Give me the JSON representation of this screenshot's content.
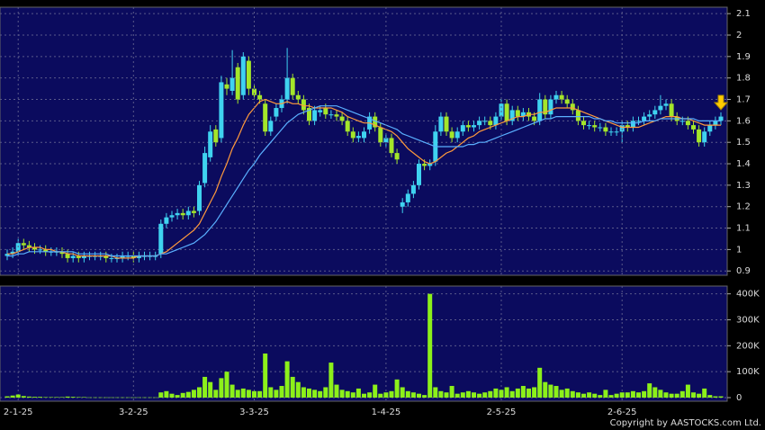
{
  "chart_data": [
    {
      "type": "candlestick",
      "open": [
        0.97,
        0.98,
        0.99,
        1.03,
        1.02,
        1.01,
        1.0,
        1.0,
        0.99,
        0.99,
        0.99,
        0.98,
        0.96,
        0.97,
        0.96,
        0.97,
        0.97,
        0.97,
        0.97,
        0.96,
        0.96,
        0.96,
        0.97,
        0.97,
        0.96,
        0.97,
        0.97,
        0.97,
        0.98,
        1.12,
        1.15,
        1.16,
        1.17,
        1.16,
        1.18,
        1.18,
        1.31,
        1.43,
        1.56,
        1.52,
        1.77,
        1.74,
        1.85,
        1.72,
        1.88,
        1.75,
        1.72,
        1.68,
        1.55,
        1.62,
        1.66,
        1.7,
        1.8,
        1.72,
        1.7,
        1.66,
        1.6,
        1.64,
        1.66,
        1.63,
        1.63,
        1.62,
        1.6,
        1.55,
        1.52,
        1.52,
        1.56,
        1.62,
        1.57,
        1.5,
        1.52,
        1.45,
        1.2,
        1.22,
        1.26,
        1.3,
        1.4,
        1.39,
        1.41,
        1.55,
        1.62,
        1.55,
        1.52,
        1.55,
        1.58,
        1.57,
        1.58,
        1.6,
        1.6,
        1.58,
        1.62,
        1.68,
        1.6,
        1.65,
        1.62,
        1.64,
        1.62,
        1.6,
        1.7,
        1.63,
        1.7,
        1.72,
        1.7,
        1.68,
        1.65,
        1.6,
        1.58,
        1.58,
        1.57,
        1.57,
        1.55,
        1.55,
        1.55,
        1.58,
        1.57,
        1.6,
        1.6,
        1.62,
        1.63,
        1.65,
        1.67,
        1.68,
        1.62,
        1.6,
        1.6,
        1.58,
        1.56,
        1.5,
        1.55,
        1.58,
        1.6
      ],
      "high": [
        1.0,
        1.01,
        1.05,
        1.05,
        1.04,
        1.03,
        1.02,
        1.02,
        1.01,
        1.01,
        1.01,
        1.0,
        0.99,
        0.99,
        0.99,
        0.99,
        0.99,
        0.99,
        0.99,
        0.98,
        0.98,
        0.99,
        0.99,
        0.99,
        0.99,
        0.99,
        0.99,
        0.99,
        1.14,
        1.17,
        1.18,
        1.19,
        1.19,
        1.2,
        1.2,
        1.32,
        1.48,
        1.58,
        1.58,
        1.81,
        1.8,
        1.93,
        1.87,
        1.92,
        1.9,
        1.77,
        1.74,
        1.7,
        1.62,
        1.68,
        1.72,
        1.94,
        1.82,
        1.74,
        1.72,
        1.68,
        1.67,
        1.67,
        1.68,
        1.65,
        1.65,
        1.64,
        1.62,
        1.57,
        1.55,
        1.57,
        1.64,
        1.64,
        1.59,
        1.54,
        1.54,
        1.47,
        1.24,
        1.28,
        1.32,
        1.42,
        1.42,
        1.42,
        1.58,
        1.64,
        1.64,
        1.57,
        1.57,
        1.6,
        1.6,
        1.6,
        1.62,
        1.62,
        1.62,
        1.64,
        1.7,
        1.7,
        1.67,
        1.67,
        1.66,
        1.66,
        1.64,
        1.73,
        1.72,
        1.72,
        1.74,
        1.74,
        1.72,
        1.7,
        1.67,
        1.62,
        1.6,
        1.6,
        1.59,
        1.59,
        1.57,
        1.57,
        1.6,
        1.6,
        1.62,
        1.62,
        1.64,
        1.65,
        1.67,
        1.72,
        1.7,
        1.7,
        1.64,
        1.62,
        1.62,
        1.6,
        1.58,
        1.57,
        1.6,
        1.62,
        1.64
      ],
      "low": [
        0.95,
        0.96,
        0.97,
        1.0,
        0.99,
        0.98,
        0.98,
        0.97,
        0.97,
        0.97,
        0.96,
        0.94,
        0.94,
        0.94,
        0.94,
        0.95,
        0.95,
        0.95,
        0.94,
        0.94,
        0.94,
        0.94,
        0.95,
        0.94,
        0.94,
        0.95,
        0.95,
        0.95,
        0.96,
        1.1,
        1.13,
        1.14,
        1.14,
        1.14,
        1.15,
        1.16,
        1.29,
        1.41,
        1.48,
        1.5,
        1.72,
        1.72,
        1.68,
        1.7,
        1.72,
        1.7,
        1.68,
        1.53,
        1.53,
        1.6,
        1.64,
        1.68,
        1.7,
        1.68,
        1.63,
        1.58,
        1.58,
        1.62,
        1.61,
        1.61,
        1.6,
        1.58,
        1.53,
        1.5,
        1.5,
        1.5,
        1.54,
        1.55,
        1.48,
        1.48,
        1.43,
        1.4,
        1.17,
        1.2,
        1.24,
        1.28,
        1.37,
        1.37,
        1.39,
        1.53,
        1.53,
        1.5,
        1.5,
        1.53,
        1.55,
        1.55,
        1.56,
        1.58,
        1.56,
        1.56,
        1.6,
        1.58,
        1.58,
        1.6,
        1.6,
        1.6,
        1.58,
        1.58,
        1.61,
        1.61,
        1.68,
        1.68,
        1.66,
        1.63,
        1.58,
        1.56,
        1.56,
        1.55,
        1.55,
        1.53,
        1.53,
        1.53,
        1.5,
        1.55,
        1.55,
        1.58,
        1.58,
        1.6,
        1.61,
        1.63,
        1.65,
        1.6,
        1.58,
        1.58,
        1.56,
        1.54,
        1.48,
        1.48,
        1.53,
        1.56,
        1.58
      ],
      "close": [
        0.98,
        0.99,
        1.03,
        1.02,
        1.01,
        1.0,
        1.0,
        0.99,
        0.99,
        0.99,
        0.98,
        0.96,
        0.97,
        0.96,
        0.97,
        0.97,
        0.97,
        0.97,
        0.96,
        0.96,
        0.96,
        0.97,
        0.97,
        0.96,
        0.97,
        0.97,
        0.97,
        0.97,
        1.12,
        1.15,
        1.16,
        1.17,
        1.16,
        1.18,
        1.17,
        1.3,
        1.45,
        1.55,
        1.5,
        1.78,
        1.75,
        1.8,
        1.7,
        1.9,
        1.75,
        1.72,
        1.7,
        1.55,
        1.6,
        1.66,
        1.7,
        1.8,
        1.72,
        1.7,
        1.65,
        1.6,
        1.65,
        1.65,
        1.63,
        1.63,
        1.62,
        1.6,
        1.55,
        1.52,
        1.53,
        1.55,
        1.62,
        1.57,
        1.5,
        1.52,
        1.45,
        1.42,
        1.22,
        1.26,
        1.3,
        1.4,
        1.39,
        1.4,
        1.55,
        1.62,
        1.55,
        1.52,
        1.55,
        1.58,
        1.57,
        1.58,
        1.6,
        1.6,
        1.58,
        1.62,
        1.68,
        1.6,
        1.65,
        1.62,
        1.64,
        1.62,
        1.6,
        1.7,
        1.63,
        1.7,
        1.72,
        1.7,
        1.68,
        1.65,
        1.6,
        1.58,
        1.58,
        1.57,
        1.57,
        1.55,
        1.55,
        1.55,
        1.58,
        1.57,
        1.6,
        1.6,
        1.62,
        1.63,
        1.65,
        1.67,
        1.68,
        1.62,
        1.6,
        1.6,
        1.58,
        1.56,
        1.5,
        1.55,
        1.58,
        1.6,
        1.62
      ],
      "up_color": "#3fd3f0",
      "down_color": "#a4e62a",
      "series": [
        {
          "color": "#ff9a3c",
          "values": [
            0.98,
            0.98,
            0.99,
            1.0,
            1.01,
            1.01,
            1.01,
            1.0,
            1.0,
            0.99,
            0.99,
            0.98,
            0.98,
            0.97,
            0.97,
            0.97,
            0.97,
            0.97,
            0.97,
            0.97,
            0.96,
            0.96,
            0.96,
            0.96,
            0.97,
            0.97,
            0.97,
            0.97,
            0.98,
            0.99,
            1.01,
            1.03,
            1.05,
            1.07,
            1.09,
            1.12,
            1.17,
            1.22,
            1.27,
            1.34,
            1.4,
            1.47,
            1.52,
            1.58,
            1.63,
            1.66,
            1.69,
            1.7,
            1.69,
            1.68,
            1.68,
            1.69,
            1.68,
            1.68,
            1.67,
            1.67,
            1.66,
            1.66,
            1.66,
            1.66,
            1.65,
            1.64,
            1.62,
            1.61,
            1.6,
            1.59,
            1.59,
            1.58,
            1.57,
            1.56,
            1.55,
            1.53,
            1.5,
            1.47,
            1.45,
            1.43,
            1.41,
            1.4,
            1.41,
            1.43,
            1.45,
            1.46,
            1.48,
            1.5,
            1.52,
            1.53,
            1.55,
            1.56,
            1.57,
            1.58,
            1.59,
            1.6,
            1.61,
            1.62,
            1.62,
            1.63,
            1.63,
            1.64,
            1.64,
            1.65,
            1.66,
            1.66,
            1.66,
            1.66,
            1.65,
            1.64,
            1.63,
            1.62,
            1.61,
            1.6,
            1.59,
            1.58,
            1.57,
            1.57,
            1.57,
            1.57,
            1.58,
            1.59,
            1.6,
            1.61,
            1.62,
            1.62,
            1.62,
            1.61,
            1.61,
            1.6,
            1.59,
            1.58,
            1.58,
            1.58,
            1.58
          ]
        },
        {
          "color": "#5ab0ff",
          "values": [
            0.97,
            0.97,
            0.98,
            0.98,
            0.99,
            0.99,
            0.99,
            0.99,
            0.99,
            0.99,
            0.99,
            0.99,
            0.99,
            0.98,
            0.98,
            0.98,
            0.98,
            0.98,
            0.98,
            0.97,
            0.97,
            0.97,
            0.97,
            0.97,
            0.97,
            0.97,
            0.97,
            0.97,
            0.98,
            0.98,
            0.99,
            1.0,
            1.01,
            1.02,
            1.03,
            1.05,
            1.07,
            1.1,
            1.13,
            1.17,
            1.21,
            1.25,
            1.29,
            1.33,
            1.37,
            1.4,
            1.44,
            1.47,
            1.5,
            1.53,
            1.56,
            1.59,
            1.61,
            1.63,
            1.64,
            1.65,
            1.66,
            1.67,
            1.67,
            1.67,
            1.67,
            1.66,
            1.65,
            1.64,
            1.63,
            1.62,
            1.61,
            1.6,
            1.59,
            1.58,
            1.57,
            1.56,
            1.54,
            1.53,
            1.52,
            1.51,
            1.5,
            1.49,
            1.48,
            1.48,
            1.48,
            1.48,
            1.48,
            1.48,
            1.49,
            1.49,
            1.5,
            1.5,
            1.51,
            1.52,
            1.53,
            1.54,
            1.55,
            1.56,
            1.57,
            1.58,
            1.59,
            1.6,
            1.61,
            1.61,
            1.62,
            1.62,
            1.62,
            1.62,
            1.62,
            1.62,
            1.62,
            1.61,
            1.61,
            1.6,
            1.6,
            1.59,
            1.59,
            1.59,
            1.59,
            1.59,
            1.6,
            1.6,
            1.6,
            1.61,
            1.61,
            1.61,
            1.61,
            1.61,
            1.61,
            1.61,
            1.6,
            1.6,
            1.6,
            1.6,
            1.6
          ]
        }
      ],
      "ylim": [
        0.88,
        2.13
      ],
      "yticks": [
        0.9,
        1,
        1.1,
        1.2,
        1.3,
        1.4,
        1.5,
        1.6,
        1.7,
        1.8,
        1.9,
        2,
        2.1
      ],
      "grid": true
    },
    {
      "type": "bar",
      "categories": [
        null,
        null,
        "2-1-25",
        null,
        null,
        null,
        null,
        null,
        null,
        null,
        null,
        null,
        null,
        null,
        null,
        null,
        null,
        null,
        null,
        null,
        null,
        null,
        null,
        "3-2-25",
        null,
        null,
        null,
        null,
        null,
        null,
        null,
        null,
        null,
        null,
        null,
        null,
        null,
        null,
        null,
        null,
        null,
        null,
        null,
        null,
        null,
        "3-3-25",
        null,
        null,
        null,
        null,
        null,
        null,
        null,
        null,
        null,
        null,
        null,
        null,
        null,
        null,
        null,
        null,
        null,
        null,
        null,
        null,
        null,
        null,
        null,
        "1-4-25",
        null,
        null,
        null,
        null,
        null,
        null,
        null,
        null,
        null,
        null,
        null,
        null,
        null,
        null,
        null,
        null,
        null,
        null,
        null,
        null,
        "2-5-25",
        null,
        null,
        null,
        null,
        null,
        null,
        null,
        null,
        null,
        null,
        null,
        null,
        null,
        null,
        null,
        null,
        null,
        null,
        null,
        null,
        null,
        "2-6-25",
        null,
        null,
        null,
        null,
        null,
        null,
        null,
        null,
        null,
        null,
        null,
        null,
        null,
        null,
        null,
        null,
        null,
        null
      ],
      "values": [
        5000,
        8000,
        12000,
        6000,
        4000,
        3000,
        3000,
        2000,
        2000,
        2000,
        2000,
        4000,
        3000,
        2000,
        2000,
        1000,
        1000,
        1000,
        1000,
        1000,
        1000,
        1000,
        1000,
        1000,
        1000,
        1000,
        1000,
        1000,
        20000,
        25000,
        15000,
        10000,
        18000,
        22000,
        30000,
        40000,
        80000,
        60000,
        30000,
        75000,
        100000,
        50000,
        30000,
        35000,
        30000,
        25000,
        25000,
        170000,
        40000,
        30000,
        45000,
        140000,
        80000,
        60000,
        40000,
        35000,
        30000,
        25000,
        40000,
        135000,
        50000,
        30000,
        25000,
        20000,
        35000,
        15000,
        20000,
        50000,
        15000,
        20000,
        25000,
        70000,
        40000,
        25000,
        20000,
        15000,
        10000,
        400000,
        40000,
        25000,
        20000,
        45000,
        15000,
        20000,
        25000,
        20000,
        15000,
        20000,
        25000,
        35000,
        30000,
        40000,
        25000,
        35000,
        45000,
        35000,
        40000,
        115000,
        60000,
        50000,
        45000,
        30000,
        35000,
        25000,
        20000,
        15000,
        20000,
        15000,
        10000,
        30000,
        10000,
        15000,
        20000,
        20000,
        25000,
        20000,
        25000,
        55000,
        40000,
        30000,
        20000,
        15000,
        15000,
        25000,
        50000,
        20000,
        15000,
        35000,
        10000,
        5000,
        5000
      ],
      "color": "#8cf01a",
      "ylim": [
        0,
        430000
      ],
      "yticks": [
        0,
        {
          "value": 100000,
          "label": "100K"
        },
        {
          "value": 200000,
          "label": "200K"
        },
        {
          "value": 300000,
          "label": "300K"
        },
        {
          "value": 400000,
          "label": "400K"
        }
      ],
      "grid": true,
      "footnote": "Copyright by AASTOCKS.com Ltd."
    }
  ]
}
